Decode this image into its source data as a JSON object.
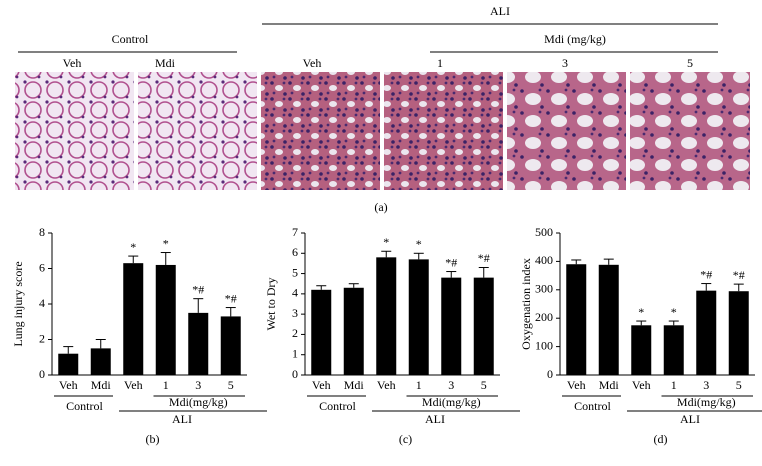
{
  "panel_a": {
    "label": "(a)",
    "ali": "ALI",
    "control": "Control",
    "mdi": "Mdi (mg/kg)",
    "columns": [
      "Veh",
      "Mdi",
      "Veh",
      "1",
      "3",
      "5"
    ]
  },
  "chart_data": [
    {
      "type": "bar",
      "panel": "(b)",
      "ylabel": "Lung injury score",
      "color": "#000000",
      "categories": [
        "Veh",
        "Mdi",
        "Veh",
        "1",
        "3",
        "5"
      ],
      "values": [
        1.2,
        1.5,
        6.3,
        6.2,
        3.5,
        3.3
      ],
      "errors": [
        0.4,
        0.5,
        0.4,
        0.7,
        0.8,
        0.5
      ],
      "annotations": [
        null,
        null,
        "*",
        "*",
        "*#",
        "*#"
      ],
      "ylim": [
        0,
        8
      ],
      "yticks": [
        0,
        2,
        4,
        6,
        8
      ],
      "group_labels": {
        "control": "Control",
        "treatment": "Mdi(mg/kg)",
        "model": "ALI"
      }
    },
    {
      "type": "bar",
      "panel": "(c)",
      "ylabel": "Wet to Dry",
      "color": "#000000",
      "categories": [
        "Veh",
        "Mdi",
        "Veh",
        "1",
        "3",
        "5"
      ],
      "values": [
        4.2,
        4.3,
        5.8,
        5.7,
        4.8,
        4.8
      ],
      "errors": [
        0.2,
        0.2,
        0.3,
        0.3,
        0.3,
        0.5
      ],
      "annotations": [
        null,
        null,
        "*",
        "*",
        "*#",
        "*#"
      ],
      "ylim": [
        0,
        7
      ],
      "yticks": [
        0,
        1,
        2,
        3,
        4,
        5,
        6,
        7
      ],
      "group_labels": {
        "control": "Control",
        "treatment": "Mdi(mg/kg)",
        "model": "ALI"
      }
    },
    {
      "type": "bar",
      "panel": "(d)",
      "ylabel": "Oxygenation index",
      "color": "#000000",
      "categories": [
        "Veh",
        "Mdi",
        "Veh",
        "1",
        "3",
        "5"
      ],
      "values": [
        390,
        388,
        175,
        175,
        297,
        295
      ],
      "errors": [
        15,
        20,
        15,
        15,
        25,
        25
      ],
      "annotations": [
        null,
        null,
        "*",
        "*",
        "*#",
        "*#"
      ],
      "ylim": [
        0,
        500
      ],
      "yticks": [
        0,
        100,
        200,
        300,
        400,
        500
      ],
      "group_labels": {
        "control": "Control",
        "treatment": "Mdi(mg/kg)",
        "model": "ALI"
      }
    }
  ]
}
